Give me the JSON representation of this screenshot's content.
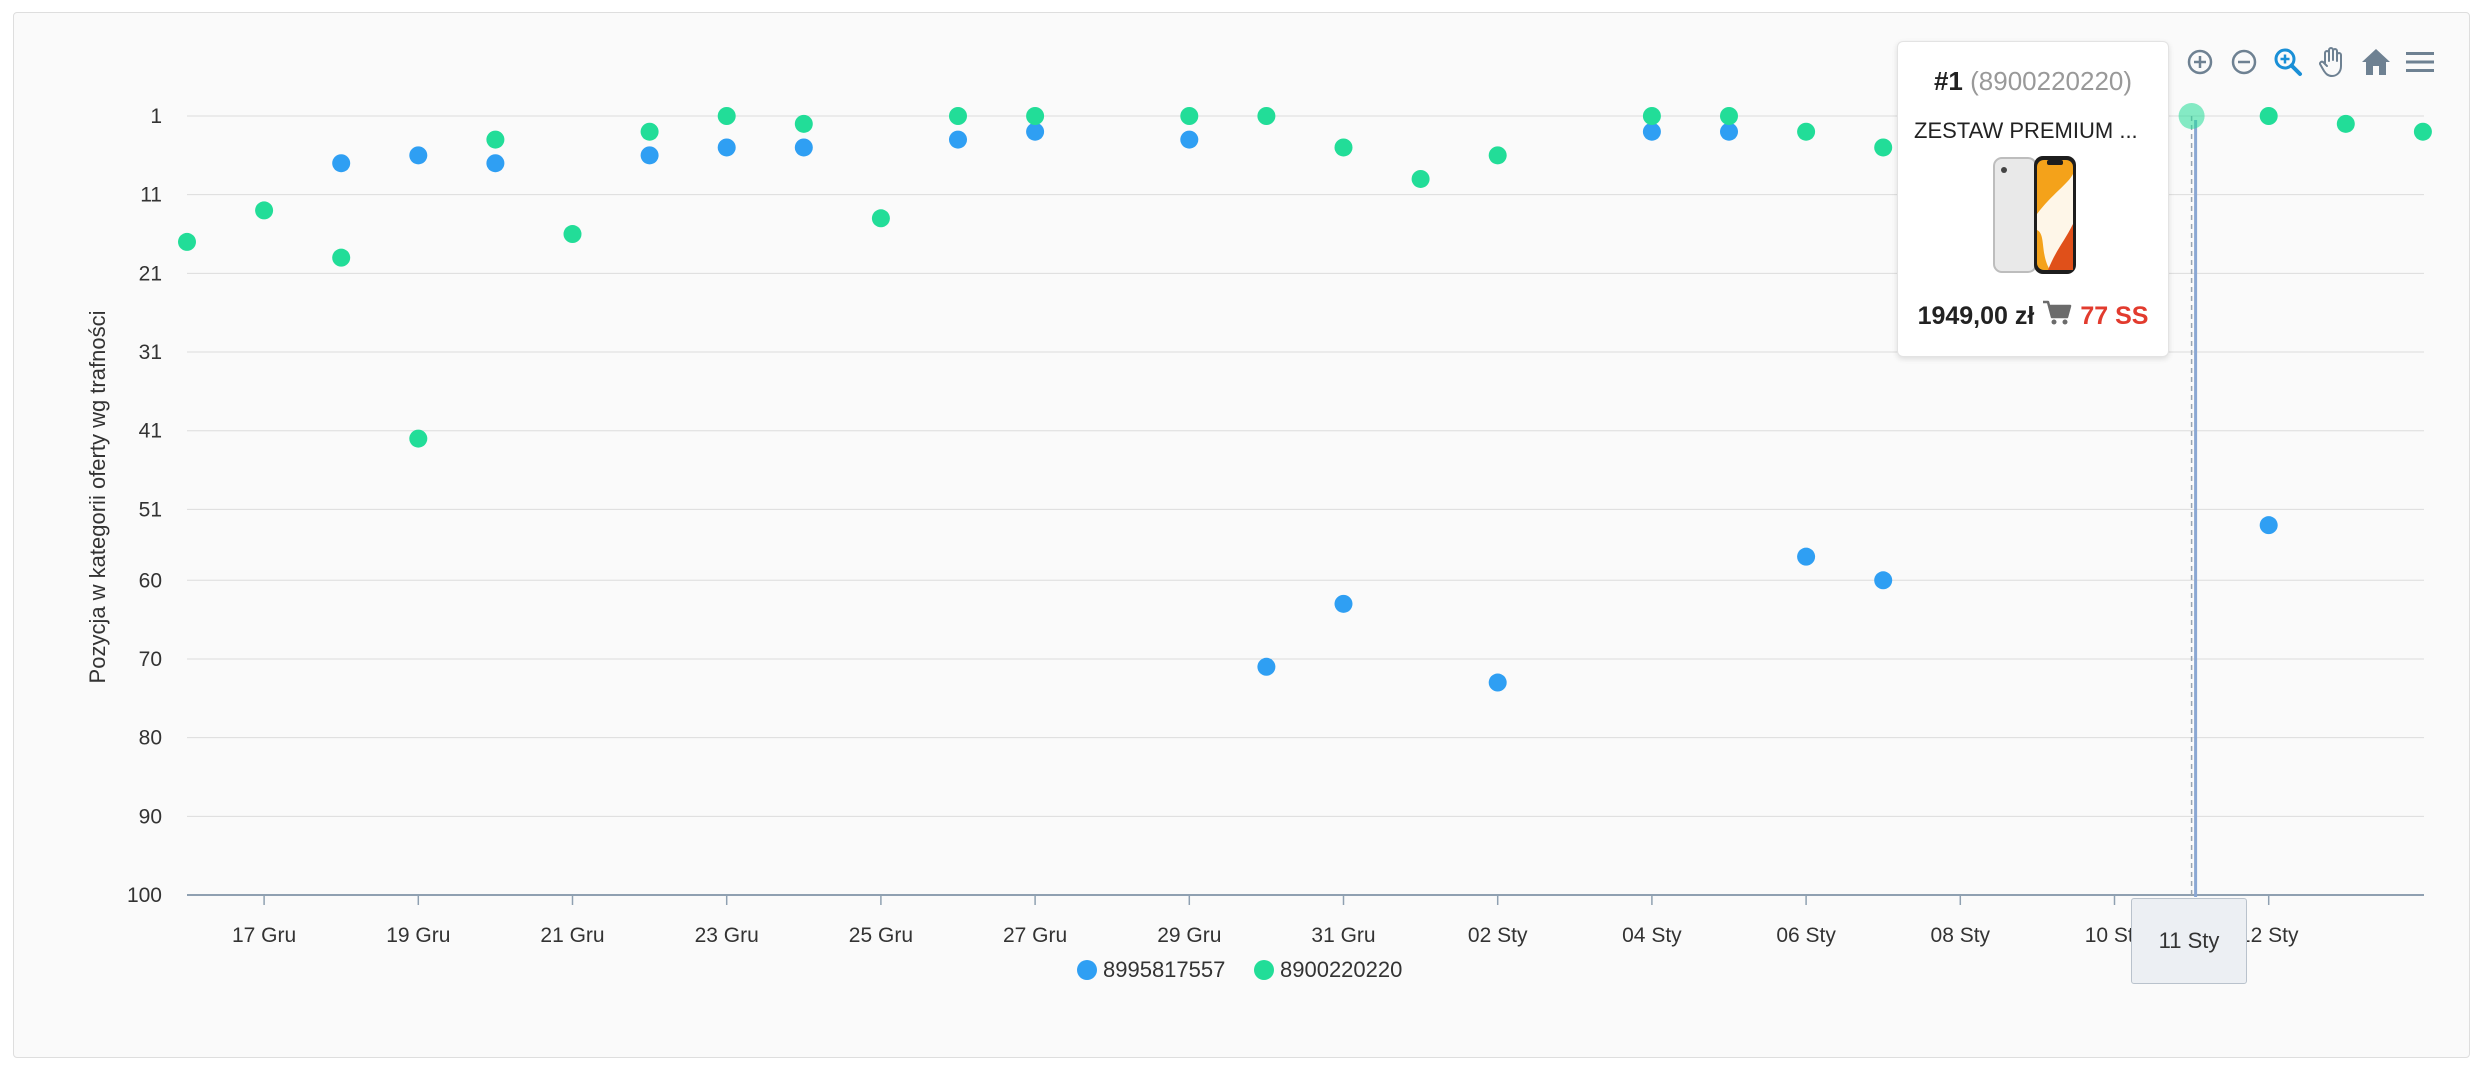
{
  "chart_data": {
    "type": "scatter",
    "ylabel": "Pozycja w kategorii oferty wg trafności",
    "xlabel": "",
    "title": "",
    "y_reversed": true,
    "ylim": [
      1,
      100
    ],
    "yticks": [
      1,
      11,
      21,
      31,
      41,
      51,
      60,
      70,
      80,
      90,
      100
    ],
    "x_range": [
      "16 Gru",
      "14 Sty"
    ],
    "x_dates": [
      "16 Gru",
      "17 Gru",
      "18 Gru",
      "19 Gru",
      "20 Gru",
      "21 Gru",
      "22 Gru",
      "23 Gru",
      "24 Gru",
      "25 Gru",
      "26 Gru",
      "27 Gru",
      "28 Gru",
      "29 Gru",
      "30 Gru",
      "31 Gru",
      "01 Sty",
      "02 Sty",
      "03 Sty",
      "04 Sty",
      "05 Sty",
      "06 Sty",
      "07 Sty",
      "08 Sty",
      "09 Sty",
      "10 Sty",
      "11 Sty",
      "12 Sty",
      "13 Sty",
      "14 Sty"
    ],
    "x_ticks": [
      {
        "label": "17 Gru",
        "i": 1
      },
      {
        "label": "19 Gru",
        "i": 3
      },
      {
        "label": "21 Gru",
        "i": 5
      },
      {
        "label": "23 Gru",
        "i": 7
      },
      {
        "label": "25 Gru",
        "i": 9
      },
      {
        "label": "27 Gru",
        "i": 11
      },
      {
        "label": "29 Gru",
        "i": 13
      },
      {
        "label": "31 Gru",
        "i": 15
      },
      {
        "label": "02 Sty",
        "i": 17
      },
      {
        "label": "04 Sty",
        "i": 19
      },
      {
        "label": "06 Sty",
        "i": 21
      },
      {
        "label": "08 Sty",
        "i": 23
      },
      {
        "label": "10 Sty",
        "i": 25
      },
      {
        "label": "12 Sty",
        "i": 27
      }
    ],
    "grid": true,
    "legend": "bottom-center",
    "series": [
      {
        "name": "8995817557",
        "color": "#2f9ff3",
        "points": [
          [
            2,
            7
          ],
          [
            3,
            6
          ],
          [
            4,
            7
          ],
          [
            6,
            6
          ],
          [
            7,
            5
          ],
          [
            8,
            5
          ],
          [
            10,
            4
          ],
          [
            11,
            3
          ],
          [
            13,
            4
          ],
          [
            14,
            71
          ],
          [
            15,
            63
          ],
          [
            17,
            73
          ],
          [
            19,
            3
          ],
          [
            20,
            3
          ],
          [
            21,
            57
          ],
          [
            22,
            60
          ],
          [
            27,
            53
          ]
        ]
      },
      {
        "name": "8900220220",
        "color": "#22dd98",
        "points": [
          [
            0,
            17
          ],
          [
            1,
            13
          ],
          [
            2,
            19
          ],
          [
            3,
            42
          ],
          [
            4,
            4
          ],
          [
            5,
            16
          ],
          [
            6,
            3
          ],
          [
            7,
            1
          ],
          [
            8,
            2
          ],
          [
            9,
            14
          ],
          [
            10,
            1
          ],
          [
            11,
            1
          ],
          [
            13,
            1
          ],
          [
            14,
            1
          ],
          [
            15,
            5
          ],
          [
            16,
            9
          ],
          [
            17,
            6
          ],
          [
            19,
            1
          ],
          [
            20,
            1
          ],
          [
            21,
            3
          ],
          [
            22,
            5
          ],
          [
            26,
            1
          ],
          [
            27,
            1
          ],
          [
            28,
            2
          ],
          [
            29,
            3
          ]
        ]
      }
    ]
  },
  "toolbar": {
    "zoom_in_icon": "zoom-in-icon",
    "zoom_out_icon": "zoom-out-icon",
    "selection_zoom_icon": "selection-zoom-icon",
    "pan_icon": "pan-hand-icon",
    "reset_icon": "home-icon",
    "menu_icon": "menu-icon",
    "active_color": "#1a8fd6",
    "icon_color": "#6e8192"
  },
  "tooltip": {
    "rank": "#1",
    "id": "(8900220220)",
    "product_title": "ZESTAW PREMIUM ...",
    "price": "1949,00 zł",
    "seller": "77 SS",
    "cart_icon": "cart-icon",
    "image_icon": "phone-image"
  },
  "crosshair": {
    "x_label": "11 Sty",
    "x_index": 26
  }
}
